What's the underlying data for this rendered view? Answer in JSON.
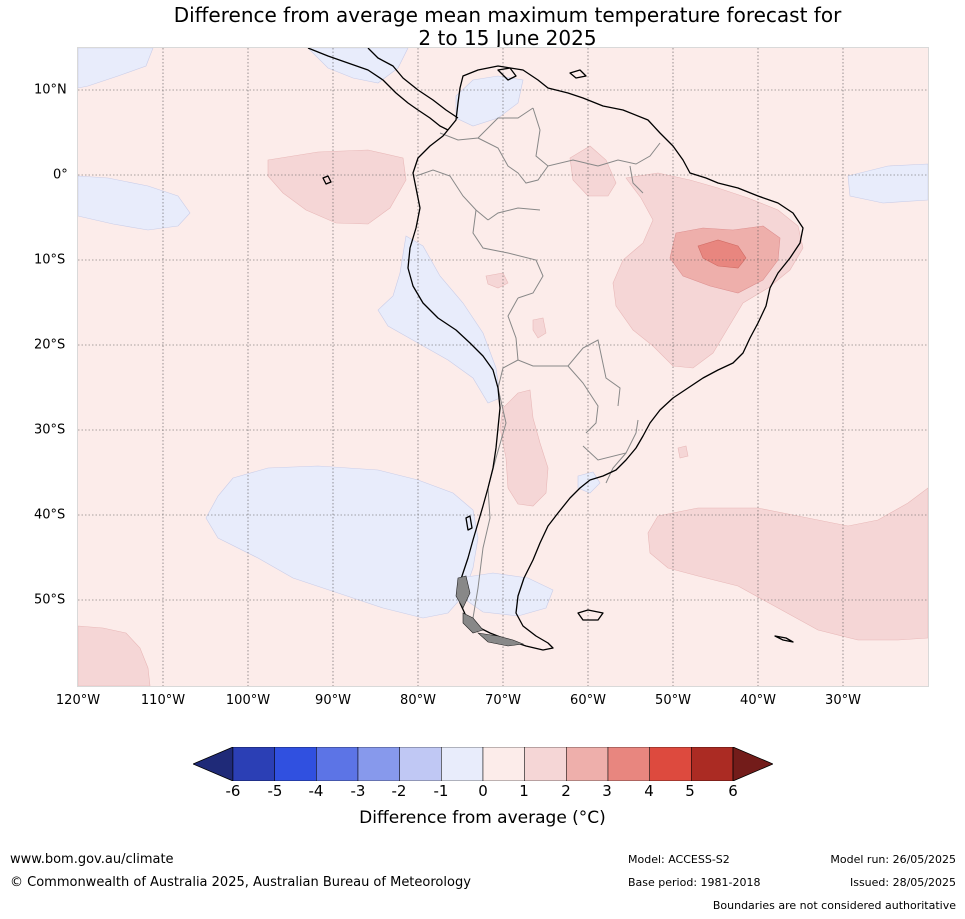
{
  "title": {
    "line1": "Difference from average mean maximum temperature forecast for",
    "line2": "2 to 15 June 2025"
  },
  "map": {
    "lat_labels": [
      "10°N",
      "0°",
      "10°S",
      "20°S",
      "30°S",
      "40°S",
      "50°S"
    ],
    "lon_labels": [
      "120°W",
      "110°W",
      "100°W",
      "90°W",
      "80°W",
      "70°W",
      "60°W",
      "50°W",
      "40°W",
      "30°W"
    ],
    "colors": {
      "background_0_to_1": "#fcecea",
      "neg_0_to_1": "#e8ecfb",
      "one_to_two": "#f5d6d6",
      "two_to_three": "#eeafab",
      "three_to_four": "#e8867f",
      "coast": "#000000",
      "borders": "#888888"
    }
  },
  "colorbar": {
    "ticks": [
      "-6",
      "-5",
      "-4",
      "-3",
      "-2",
      "-1",
      "0",
      "1",
      "2",
      "3",
      "4",
      "5",
      "6"
    ],
    "colors": [
      "#1f2a78",
      "#2b3fb5",
      "#3050e0",
      "#5c74e6",
      "#8799ec",
      "#c0c8f4",
      "#e8ecfb",
      "#fcecea",
      "#f5d6d6",
      "#eeafab",
      "#e8867f",
      "#dd4a3e",
      "#ab2b23",
      "#731c1a"
    ],
    "label": "Difference from average (°C)"
  },
  "footer": {
    "url": "www.bom.gov.au/climate",
    "copyright": "© Commonwealth of Australia 2025, Australian Bureau of Meteorology",
    "model": "Model: ACCESS-S2",
    "base_period": "Base period: 1981-2018",
    "model_run": "Model run: 26/05/2025",
    "issued": "Issued: 28/05/2025",
    "disclaimer": "Boundaries are not considered authoritative"
  }
}
